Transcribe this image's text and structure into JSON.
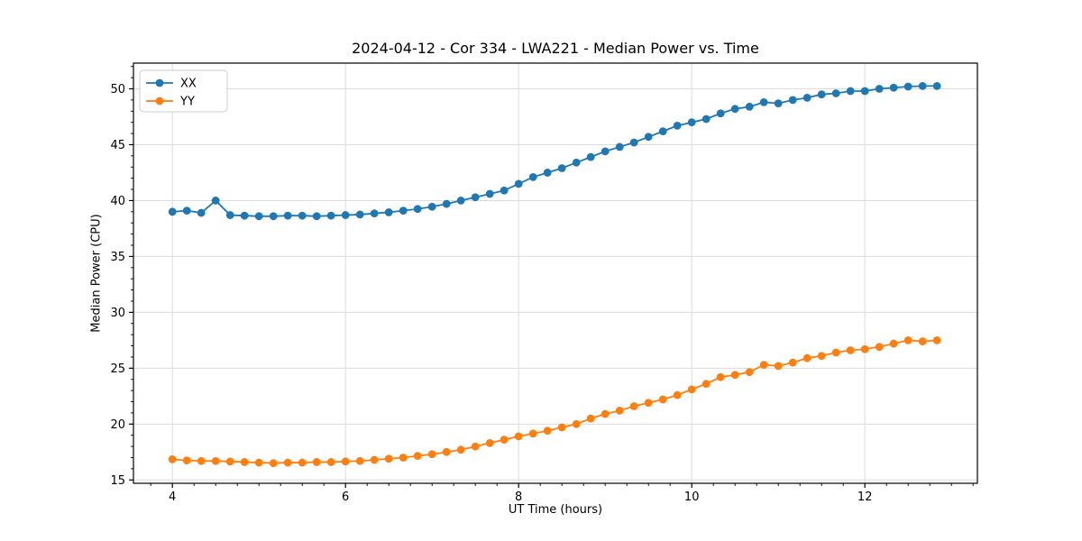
{
  "figure": {
    "kind": "matplotlib-line-figure"
  },
  "chart_data": {
    "type": "line",
    "title": "2024-04-12 - Cor 334 - LWA221 - Median Power vs. Time",
    "xlabel": "UT Time (hours)",
    "ylabel": "Median Power (CPU)",
    "legend_position": "upper left",
    "grid": true,
    "xlim": [
      3.55,
      13.3
    ],
    "ylim": [
      14.7,
      52.3
    ],
    "x_ticks": [
      4,
      6,
      8,
      10,
      12
    ],
    "y_ticks": [
      15,
      20,
      25,
      30,
      35,
      40,
      45,
      50
    ],
    "x_minor_step": 0.25,
    "y_minor_step": 1,
    "x": [
      4.0,
      4.167,
      4.333,
      4.5,
      4.667,
      4.833,
      5.0,
      5.167,
      5.333,
      5.5,
      5.667,
      5.833,
      6.0,
      6.167,
      6.333,
      6.5,
      6.667,
      6.833,
      7.0,
      7.167,
      7.333,
      7.5,
      7.667,
      7.833,
      8.0,
      8.167,
      8.333,
      8.5,
      8.667,
      8.833,
      9.0,
      9.167,
      9.333,
      9.5,
      9.667,
      9.833,
      10.0,
      10.167,
      10.333,
      10.5,
      10.667,
      10.833,
      11.0,
      11.167,
      11.333,
      11.5,
      11.667,
      11.833,
      12.0,
      12.167,
      12.333,
      12.5,
      12.667,
      12.833
    ],
    "series": [
      {
        "name": "XX",
        "color": "#1f77b4",
        "values": [
          39.0,
          39.1,
          38.9,
          40.0,
          38.7,
          38.65,
          38.6,
          38.6,
          38.65,
          38.65,
          38.6,
          38.65,
          38.7,
          38.75,
          38.85,
          38.95,
          39.1,
          39.25,
          39.45,
          39.7,
          40.0,
          40.3,
          40.6,
          40.9,
          41.5,
          42.1,
          42.5,
          42.9,
          43.4,
          43.9,
          44.4,
          44.8,
          45.2,
          45.7,
          46.2,
          46.7,
          47.0,
          47.3,
          47.8,
          48.2,
          48.4,
          48.8,
          48.7,
          49.0,
          49.2,
          49.5,
          49.6,
          49.8,
          49.8,
          50.0,
          50.1,
          50.2,
          50.25,
          50.25
        ]
      },
      {
        "name": "YY",
        "color": "#ff7f0e",
        "values": [
          16.85,
          16.75,
          16.7,
          16.7,
          16.65,
          16.6,
          16.55,
          16.5,
          16.55,
          16.55,
          16.6,
          16.6,
          16.65,
          16.7,
          16.8,
          16.9,
          17.0,
          17.15,
          17.3,
          17.5,
          17.7,
          18.0,
          18.3,
          18.6,
          18.9,
          19.15,
          19.4,
          19.7,
          20.0,
          20.5,
          20.9,
          21.2,
          21.6,
          21.9,
          22.2,
          22.6,
          23.1,
          23.6,
          24.2,
          24.4,
          24.65,
          25.3,
          25.2,
          25.5,
          25.9,
          26.1,
          26.4,
          26.6,
          26.7,
          26.9,
          27.2,
          27.5,
          27.4,
          27.5
        ]
      }
    ],
    "colors": {
      "grid": "#dcdcdc",
      "spine": "#000000",
      "text": "#000000",
      "legend_border": "#cccccc"
    }
  }
}
